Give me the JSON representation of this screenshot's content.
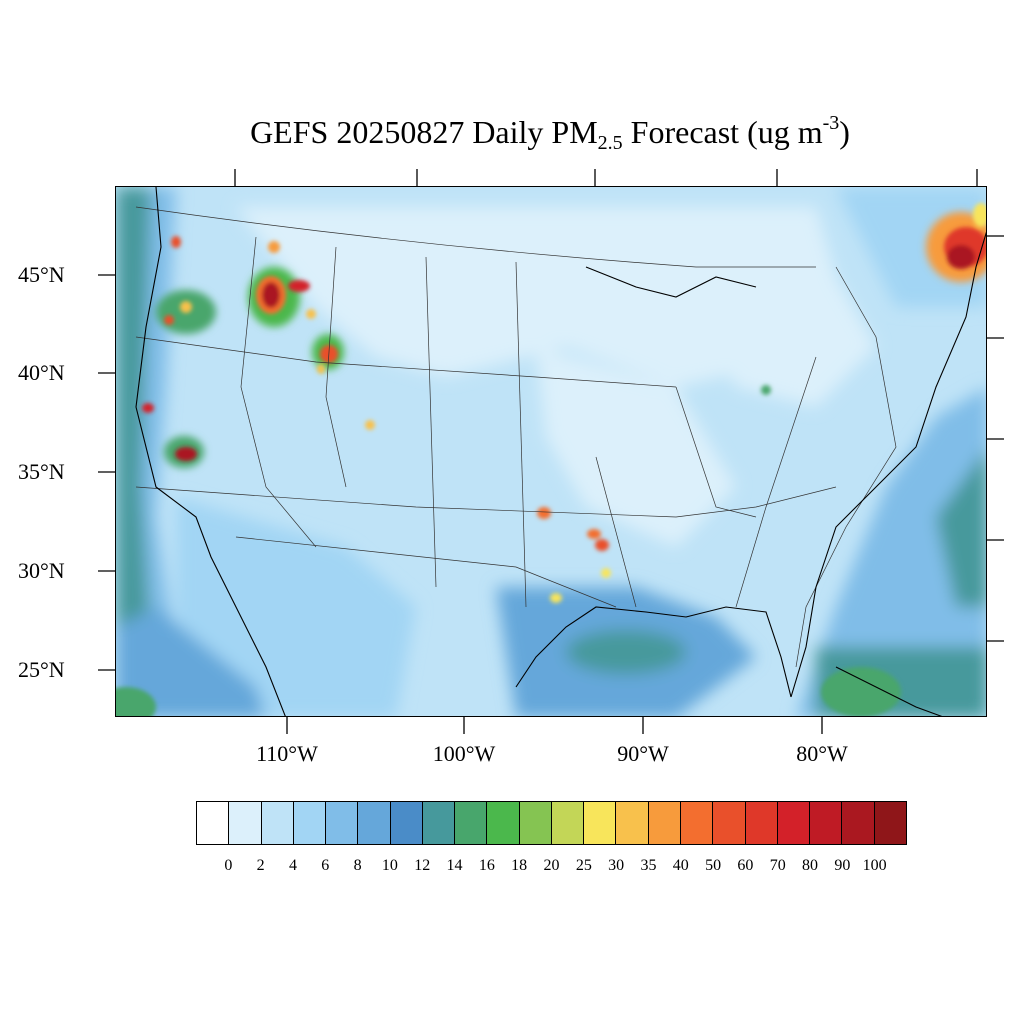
{
  "title": {
    "main": "GEFS 20250827 Daily PM",
    "sub": "2.5",
    "after": " Forecast (ug m",
    "sup": "-3",
    "close": ")"
  },
  "lat_labels": [
    "45°N",
    "40°N",
    "35°N",
    "30°N",
    "25°N"
  ],
  "lon_labels": [
    "110°W",
    "100°W",
    "90°W",
    "80°W"
  ],
  "colorbar": {
    "labels": [
      "0",
      "2",
      "4",
      "6",
      "8",
      "10",
      "12",
      "14",
      "16",
      "18",
      "20",
      "25",
      "30",
      "35",
      "40",
      "50",
      "60",
      "70",
      "80",
      "90",
      "100"
    ],
    "colors": [
      "#ffffff",
      "#dcf0fb",
      "#bfe3f7",
      "#a2d5f4",
      "#80bde8",
      "#65a7da",
      "#4a8cc8",
      "#46999c",
      "#48a66c",
      "#4bb84c",
      "#85c452",
      "#c3d657",
      "#f8e55b",
      "#f8c14c",
      "#f79b3c",
      "#f36e2f",
      "#e9502b",
      "#df3829",
      "#d32129",
      "#bf1b25",
      "#aa1820",
      "#8f1619"
    ]
  }
}
